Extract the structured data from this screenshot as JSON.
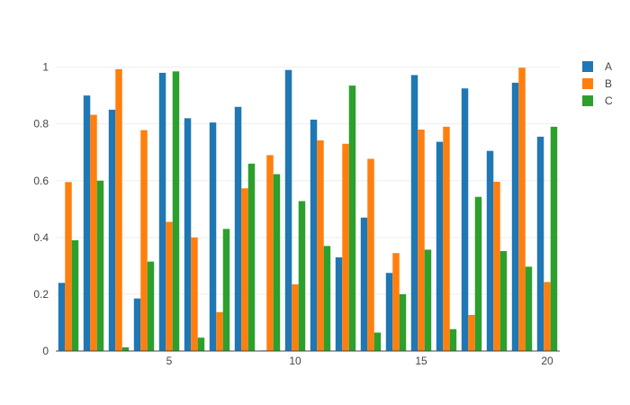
{
  "chart_data": {
    "type": "bar",
    "barmode": "group",
    "x": [
      1,
      2,
      3,
      4,
      5,
      6,
      7,
      8,
      9,
      10,
      11,
      12,
      13,
      14,
      15,
      16,
      17,
      18,
      19,
      20
    ],
    "series": [
      {
        "name": "A",
        "color": "#1f77b4",
        "values": [
          0.24,
          0.9,
          0.85,
          0.185,
          0.98,
          0.82,
          0.805,
          0.86,
          0.002,
          0.99,
          0.815,
          0.33,
          0.47,
          0.275,
          0.972,
          0.737,
          0.925,
          0.705,
          0.945,
          0.755
        ]
      },
      {
        "name": "B",
        "color": "#ff7f0e",
        "values": [
          0.595,
          0.832,
          0.993,
          0.778,
          0.455,
          0.4,
          0.137,
          0.573,
          0.69,
          0.235,
          0.742,
          0.73,
          0.677,
          0.345,
          0.78,
          0.79,
          0.127,
          0.596,
          0.998,
          0.243
        ]
      },
      {
        "name": "C",
        "color": "#2ca02c",
        "values": [
          0.39,
          0.6,
          0.013,
          0.315,
          0.985,
          0.047,
          0.43,
          0.66,
          0.623,
          0.528,
          0.37,
          0.935,
          0.065,
          0.2,
          0.357,
          0.077,
          0.543,
          0.352,
          0.297,
          0.79
        ]
      }
    ],
    "xlim": [
      0.5,
      20.5
    ],
    "ylim": [
      0,
      1.0526
    ],
    "xticks": [
      5,
      10,
      15,
      20
    ],
    "yticks": [
      0,
      0.2,
      0.4,
      0.6,
      0.8,
      1
    ],
    "ytick_labels": [
      "0",
      "0.2",
      "0.4",
      "0.6",
      "0.8",
      "1"
    ],
    "xtick_labels": [
      "5",
      "10",
      "15",
      "20"
    ],
    "grid": true,
    "legend": "top-right"
  }
}
